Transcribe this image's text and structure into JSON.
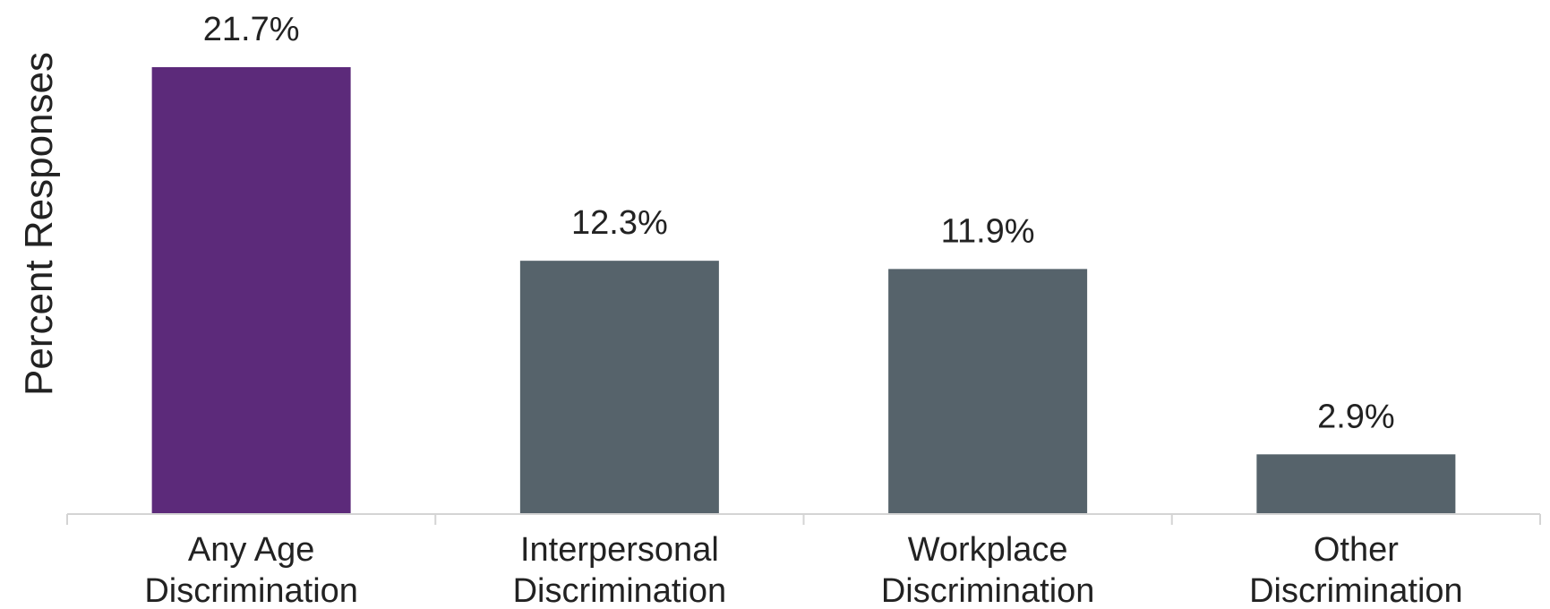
{
  "chart_data": {
    "type": "bar",
    "title": "",
    "xlabel": "",
    "ylabel": "Percent Responses",
    "ylim": [
      0,
      21.7
    ],
    "grid": false,
    "legend": "none",
    "categories": [
      [
        "Any Age",
        "Discrimination"
      ],
      [
        "Interpersonal",
        "Discrimination"
      ],
      [
        "Workplace",
        "Discrimination"
      ],
      [
        "Other",
        "Discrimination"
      ]
    ],
    "values": [
      21.7,
      12.3,
      11.9,
      2.9
    ],
    "value_labels": [
      "21.7%",
      "12.3%",
      "11.9%",
      "2.9%"
    ],
    "colors": [
      "#5c2a7a",
      "#56636b",
      "#56636b",
      "#56636b"
    ],
    "axis_color": "#d4d4d4"
  }
}
